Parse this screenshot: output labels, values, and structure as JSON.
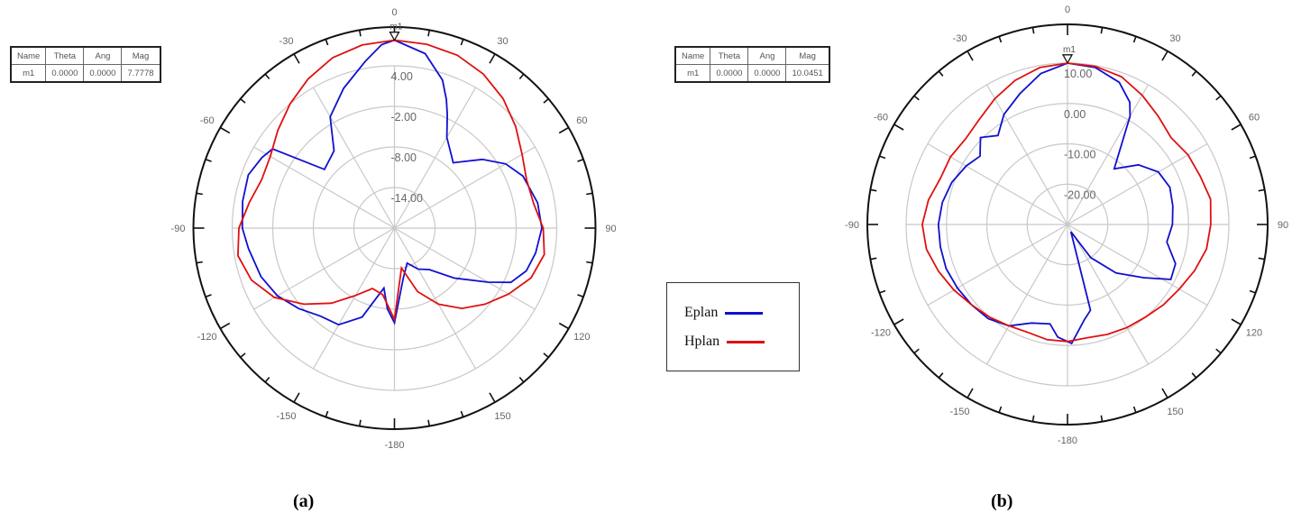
{
  "captions": {
    "a": "(a)",
    "b": "(b)"
  },
  "legend": {
    "items": [
      {
        "label": "Eplan",
        "color": "#1010d0"
      },
      {
        "label": "Hplan",
        "color": "#e01010"
      }
    ]
  },
  "marker_tables": {
    "a": {
      "headers": [
        "Name",
        "Theta",
        "Ang",
        "Mag"
      ],
      "row": [
        "m1",
        "0.0000",
        "0.0000",
        "7.7778"
      ]
    },
    "b": {
      "headers": [
        "Name",
        "Theta",
        "Ang",
        "Mag"
      ],
      "row": [
        "m1",
        "0.0000",
        "0.0000",
        "10.0451"
      ]
    }
  },
  "chart_data": [
    {
      "type": "polar-line",
      "title": "(a)",
      "angle_ticks": [
        0,
        30,
        60,
        90,
        120,
        150,
        -180,
        -150,
        -120,
        -90,
        -60,
        -30
      ],
      "angle_labels": [
        "0",
        "30",
        "60",
        "90",
        "120",
        "150",
        "-180",
        "-150",
        "-120",
        "-90",
        "-60",
        "-30"
      ],
      "radial_ticks": [
        4.0,
        -2.0,
        -8.0,
        -14.0
      ],
      "radial_labels": [
        "4.00",
        "-2.00",
        "-8.00",
        "-14.00"
      ],
      "rlim": [
        -20,
        10
      ],
      "marker": {
        "name": "m1",
        "theta": 0,
        "mag": 7.7778
      },
      "series": [
        {
          "name": "Eplan",
          "color": "#1010d0",
          "points": [
            [
              0,
              7.8
            ],
            [
              10,
              6.2
            ],
            [
              18,
              3.0
            ],
            [
              22,
              0.5
            ],
            [
              25,
              -1.5
            ],
            [
              30,
              -4.5
            ],
            [
              42,
              -7.0
            ],
            [
              52,
              -3.5
            ],
            [
              60,
              -1.0
            ],
            [
              68,
              0.5
            ],
            [
              80,
              1.5
            ],
            [
              90,
              1.8
            ],
            [
              100,
              1.2
            ],
            [
              108,
              0.5
            ],
            [
              115,
              -1.0
            ],
            [
              120,
              -4.0
            ],
            [
              130,
              -8.5
            ],
            [
              140,
              -12.0
            ],
            [
              150,
              -13.0
            ],
            [
              160,
              -14.5
            ],
            [
              170,
              -12.5
            ],
            [
              180,
              -6.0
            ],
            [
              185,
              -8.0
            ],
            [
              190,
              -11.0
            ],
            [
              200,
              -6.0
            ],
            [
              210,
              -3.5
            ],
            [
              220,
              -3.0
            ],
            [
              230,
              -1.5
            ],
            [
              240,
              0.0
            ],
            [
              250,
              1.0
            ],
            [
              262,
              1.8
            ],
            [
              270,
              2.5
            ],
            [
              280,
              2.8
            ],
            [
              290,
              3.0
            ],
            [
              298,
              2.2
            ],
            [
              303,
              1.5
            ],
            [
              310,
              -6.5
            ],
            [
              322,
              -5.5
            ],
            [
              330,
              -1.0
            ],
            [
              340,
              2.0
            ],
            [
              350,
              5.0
            ],
            [
              356,
              7.2
            ],
            [
              360,
              7.8
            ]
          ]
        },
        {
          "name": "Hplan",
          "color": "#e01010",
          "points": [
            [
              0,
              7.8
            ],
            [
              10,
              7.6
            ],
            [
              20,
              7.2
            ],
            [
              30,
              6.3
            ],
            [
              40,
              5.0
            ],
            [
              50,
              3.4
            ],
            [
              60,
              1.8
            ],
            [
              70,
              0.8
            ],
            [
              80,
              0.9
            ],
            [
              90,
              2.0
            ],
            [
              100,
              2.5
            ],
            [
              110,
              1.5
            ],
            [
              120,
              -0.5
            ],
            [
              130,
              -2.5
            ],
            [
              140,
              -4.5
            ],
            [
              150,
              -7.0
            ],
            [
              160,
              -10.0
            ],
            [
              170,
              -14.0
            ],
            [
              180,
              -6.5
            ],
            [
              190,
              -10.0
            ],
            [
              200,
              -10.5
            ],
            [
              210,
              -8.5
            ],
            [
              220,
              -5.5
            ],
            [
              230,
              -2.5
            ],
            [
              240,
              0.5
            ],
            [
              250,
              2.5
            ],
            [
              260,
              3.5
            ],
            [
              270,
              3.0
            ],
            [
              280,
              1.8
            ],
            [
              290,
              0.9
            ],
            [
              300,
              1.2
            ],
            [
              310,
              2.5
            ],
            [
              320,
              4.0
            ],
            [
              330,
              5.5
            ],
            [
              340,
              6.8
            ],
            [
              350,
              7.5
            ],
            [
              360,
              7.8
            ]
          ]
        }
      ]
    },
    {
      "type": "polar-line",
      "title": "(b)",
      "angle_ticks": [
        0,
        30,
        60,
        90,
        120,
        150,
        -180,
        -150,
        -120,
        -90,
        -60,
        -30
      ],
      "angle_labels": [
        "0",
        "30",
        "60",
        "90",
        "120",
        "150",
        "-180",
        "-150",
        "-120",
        "-90",
        "-60",
        "-30"
      ],
      "radial_ticks": [
        10.0,
        0.0,
        -10.0,
        -20.0
      ],
      "radial_labels": [
        "10.00",
        "0.00",
        "-10.00",
        "-20.00"
      ],
      "rlim": [
        -30,
        20
      ],
      "marker": {
        "name": "m1",
        "theta": 0,
        "mag": 10.0451
      },
      "series": [
        {
          "name": "Eplan",
          "color": "#1010d0",
          "points": [
            [
              0,
              10.0
            ],
            [
              10,
              9.5
            ],
            [
              20,
              7.5
            ],
            [
              27,
              4.0
            ],
            [
              30,
              1.0
            ],
            [
              40,
              -12.0
            ],
            [
              50,
              -7.0
            ],
            [
              60,
              -4.0
            ],
            [
              70,
              -3.0
            ],
            [
              80,
              -3.5
            ],
            [
              90,
              -4.0
            ],
            [
              100,
              -5.0
            ],
            [
              110,
              -1.5
            ],
            [
              118,
              -1.0
            ],
            [
              125,
              -7.0
            ],
            [
              135,
              -13.0
            ],
            [
              145,
              -20.0
            ],
            [
              155,
              -28.0
            ],
            [
              165,
              -8.0
            ],
            [
              170,
              -6.0
            ],
            [
              178,
              -0.5
            ],
            [
              185,
              -2.0
            ],
            [
              190,
              -5.0
            ],
            [
              200,
              -4.0
            ],
            [
              210,
              -1.0
            ],
            [
              220,
              0.5
            ],
            [
              230,
              1.0
            ],
            [
              240,
              1.5
            ],
            [
              250,
              2.0
            ],
            [
              260,
              2.0
            ],
            [
              270,
              2.0
            ],
            [
              280,
              1.5
            ],
            [
              290,
              0.5
            ],
            [
              300,
              -1.0
            ],
            [
              308,
              -2.5
            ],
            [
              315,
              0.5
            ],
            [
              322,
              -2.0
            ],
            [
              330,
              1.5
            ],
            [
              340,
              4.5
            ],
            [
              350,
              8.0
            ],
            [
              360,
              10.0
            ]
          ]
        },
        {
          "name": "Hplan",
          "color": "#e01010",
          "points": [
            [
              0,
              10.0
            ],
            [
              10,
              9.8
            ],
            [
              20,
              9.0
            ],
            [
              30,
              7.0
            ],
            [
              40,
              5.0
            ],
            [
              50,
              3.5
            ],
            [
              60,
              4.5
            ],
            [
              70,
              5.0
            ],
            [
              80,
              6.0
            ],
            [
              90,
              5.5
            ],
            [
              100,
              5.0
            ],
            [
              110,
              3.5
            ],
            [
              120,
              2.0
            ],
            [
              130,
              1.0
            ],
            [
              140,
              0.0
            ],
            [
              150,
              -0.5
            ],
            [
              160,
              -1.0
            ],
            [
              170,
              -1.5
            ],
            [
              180,
              -1.0
            ],
            [
              190,
              -1.0
            ],
            [
              200,
              -1.5
            ],
            [
              210,
              -1.0
            ],
            [
              220,
              0.0
            ],
            [
              230,
              1.0
            ],
            [
              240,
              2.5
            ],
            [
              250,
              4.0
            ],
            [
              260,
              5.5
            ],
            [
              270,
              6.0
            ],
            [
              280,
              5.0
            ],
            [
              290,
              3.5
            ],
            [
              300,
              3.5
            ],
            [
              310,
              3.0
            ],
            [
              320,
              4.0
            ],
            [
              330,
              6.0
            ],
            [
              340,
              8.0
            ],
            [
              350,
              9.5
            ],
            [
              360,
              10.0
            ]
          ]
        }
      ]
    }
  ]
}
